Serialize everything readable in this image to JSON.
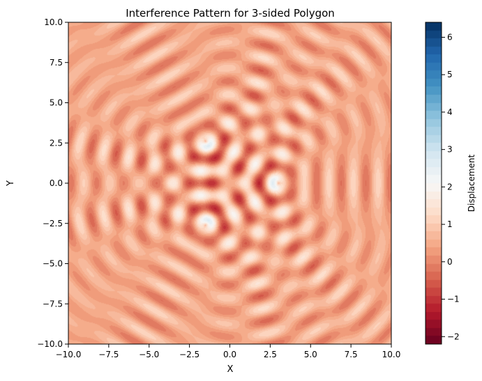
{
  "chart_data": {
    "type": "heatmap",
    "title": "Interference Pattern for 3-sided Polygon",
    "xlabel": "X",
    "ylabel": "Y",
    "xlim": [
      -10,
      10
    ],
    "ylim": [
      -10,
      10
    ],
    "xticks": [
      -10.0,
      -7.5,
      -5.0,
      -2.5,
      0.0,
      2.5,
      5.0,
      7.5,
      10.0
    ],
    "yticks": [
      -10.0,
      -7.5,
      -5.0,
      -2.5,
      0.0,
      2.5,
      5.0,
      7.5,
      10.0
    ],
    "xtick_labels": [
      "−10.0",
      "−7.5",
      "−5.0",
      "−2.5",
      "0.0",
      "2.5",
      "5.0",
      "7.5",
      "10.0"
    ],
    "ytick_labels": [
      "−10.0",
      "−7.5",
      "−5.0",
      "−2.5",
      "0.0",
      "2.5",
      "5.0",
      "7.5",
      "10.0"
    ],
    "sources": [
      {
        "x": 3.0,
        "y": 0.0
      },
      {
        "x": -1.5,
        "y": 2.6
      },
      {
        "x": -1.5,
        "y": -2.6
      }
    ],
    "colorbar": {
      "label": "Displacement",
      "range": [
        -2.2,
        6.4
      ],
      "colormap": "RdBu",
      "ticks": [
        -2,
        -1,
        0,
        1,
        2,
        3,
        4,
        5,
        6
      ],
      "tick_labels": [
        "−2",
        "−1",
        "0",
        "1",
        "2",
        "3",
        "4",
        "5",
        "6"
      ]
    },
    "grid": false
  }
}
